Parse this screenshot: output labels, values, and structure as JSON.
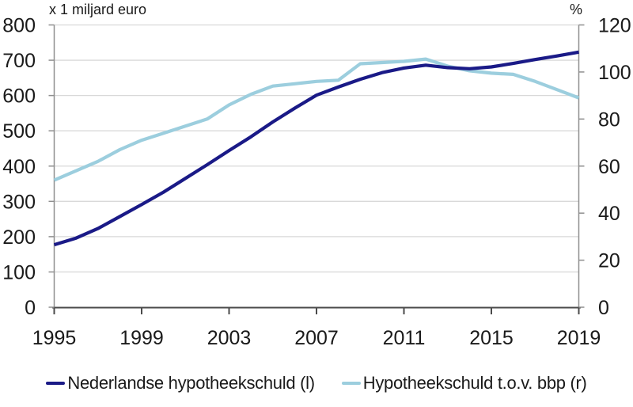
{
  "chart_data": {
    "type": "line",
    "title": "",
    "grid": "horizontal",
    "legend_position": "bottom-center",
    "x": [
      1995,
      1996,
      1997,
      1998,
      1999,
      2000,
      2001,
      2002,
      2003,
      2004,
      2005,
      2006,
      2007,
      2008,
      2009,
      2010,
      2011,
      2012,
      2013,
      2014,
      2015,
      2016,
      2017,
      2018,
      2019
    ],
    "x_tick_labels": [
      "1995",
      "1999",
      "2003",
      "2007",
      "2011",
      "2015",
      "2019"
    ],
    "left_axis": {
      "title": "x 1 miljard euro",
      "min": 0,
      "max": 800,
      "ticks": [
        800,
        700,
        600,
        500,
        400,
        300,
        200,
        100,
        0
      ]
    },
    "right_axis": {
      "title": "%",
      "min": 0,
      "max": 120,
      "ticks": [
        120,
        100,
        80,
        60,
        40,
        20,
        0
      ]
    },
    "series": [
      {
        "name": "Nederlandse hypotheekschuld (l)",
        "axis": "left",
        "unit": "miljard euro",
        "color": "#1a1a87",
        "values": [
          177,
          196,
          223,
          257,
          291,
          326,
          365,
          404,
          444,
          483,
          525,
          564,
          601,
          624,
          646,
          665,
          678,
          686,
          679,
          676,
          681,
          691,
          702,
          712,
          723
        ]
      },
      {
        "name": "Hypotheekschuld t.o.v. bbp (r)",
        "axis": "right",
        "unit": "%",
        "color": "#9ccede",
        "values": [
          54,
          58,
          62,
          67,
          71,
          74,
          77,
          80,
          86,
          90.5,
          94,
          95,
          96,
          96.5,
          103.5,
          104,
          104.5,
          105.5,
          102.5,
          100.5,
          99.5,
          99,
          96,
          92.5,
          89
        ]
      }
    ]
  },
  "styles": {
    "background": "#ffffff",
    "grid_color": "#d9d9d9",
    "side_axis_color": "#8f8f8f",
    "bottom_axis_color": "#4a4a4a",
    "text_color": "#1a1a1a"
  }
}
